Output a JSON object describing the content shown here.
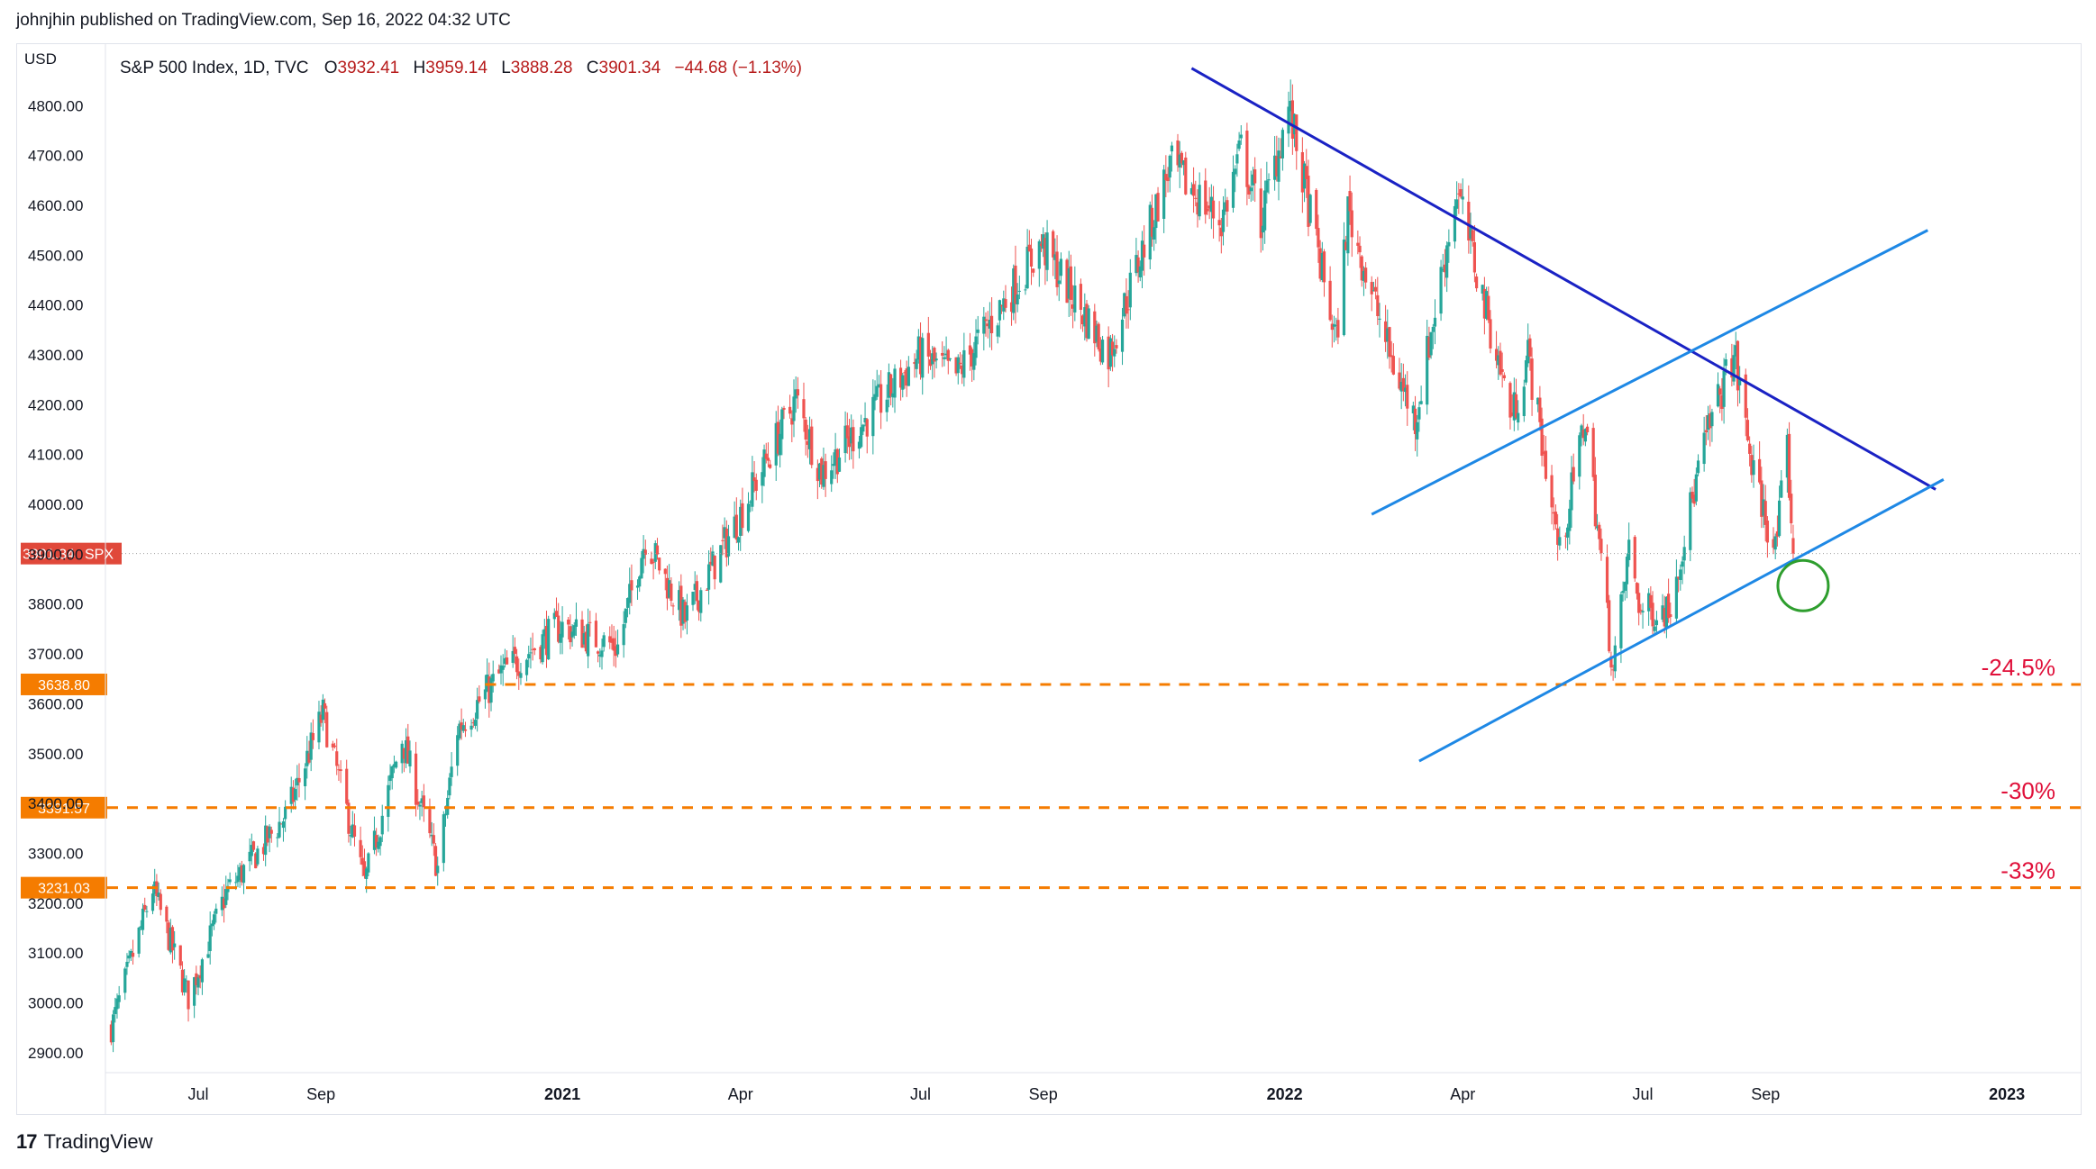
{
  "header": {
    "publish_text": "johnjhin published on TradingView.com, Sep 16, 2022 04:32 UTC"
  },
  "footer": {
    "brand": "TradingView",
    "logo_glyph": "17"
  },
  "legend": {
    "currency": "USD",
    "symbol": "S&P 500 Index, 1D, TVC",
    "open_label": "O",
    "open": "3932.41",
    "high_label": "H",
    "high": "3959.14",
    "low_label": "L",
    "low": "3888.28",
    "close_label": "C",
    "close": "3901.34",
    "change": "−44.68 (−1.13%)"
  },
  "price_tag": {
    "value": "3901.34",
    "symbol": "SPX",
    "color": "#e0483a"
  },
  "colors": {
    "up": "#26a69a",
    "down": "#ef5350",
    "accent_orange": "#f57c00",
    "dark_blue": "#1a22c4",
    "light_blue": "#1e88e5",
    "green_circle": "#2e9e2e",
    "annot_red": "#e0103a"
  },
  "chart_data": {
    "type": "candlestick",
    "title": "S&P 500 Index, 1D, TVC",
    "ylabel": "USD",
    "ylim": [
      2860,
      4880
    ],
    "xlim": [
      "2020-05-16",
      "2023-01-31"
    ],
    "y_ticks": [
      "2900.00",
      "3000.00",
      "3100.00",
      "3200.00",
      "3300.00",
      "3400.00",
      "3500.00",
      "3600.00",
      "3700.00",
      "3800.00",
      "3900.00",
      "4000.00",
      "4100.00",
      "4200.00",
      "4300.00",
      "4400.00",
      "4500.00",
      "4600.00",
      "4700.00",
      "4800.00"
    ],
    "x_ticks": [
      {
        "label": "Jul",
        "date": "2020-07-01"
      },
      {
        "label": "Sep",
        "date": "2020-09-01"
      },
      {
        "label": "2021",
        "date": "2021-01-01"
      },
      {
        "label": "Apr",
        "date": "2021-04-01"
      },
      {
        "label": "Jul",
        "date": "2021-07-01"
      },
      {
        "label": "Sep",
        "date": "2021-09-01"
      },
      {
        "label": "2022",
        "date": "2022-01-01"
      },
      {
        "label": "Apr",
        "date": "2022-04-01"
      },
      {
        "label": "Jul",
        "date": "2022-07-01"
      },
      {
        "label": "Sep",
        "date": "2022-09-01"
      },
      {
        "label": "2023",
        "date": "2023-01-01"
      }
    ],
    "close_path": [
      [
        "2020-05-18",
        2950
      ],
      [
        "2020-06-08",
        3230
      ],
      [
        "2020-06-26",
        3010
      ],
      [
        "2020-07-15",
        3220
      ],
      [
        "2020-08-15",
        3380
      ],
      [
        "2020-09-02",
        3580
      ],
      [
        "2020-09-23",
        3240
      ],
      [
        "2020-10-12",
        3530
      ],
      [
        "2020-10-30",
        3270
      ],
      [
        "2020-11-09",
        3550
      ],
      [
        "2020-12-01",
        3660
      ],
      [
        "2020-12-31",
        3756
      ],
      [
        "2021-01-29",
        3714
      ],
      [
        "2021-02-12",
        3934
      ],
      [
        "2021-03-04",
        3768
      ],
      [
        "2021-03-31",
        3973
      ],
      [
        "2021-04-29",
        4211
      ],
      [
        "2021-05-12",
        4063
      ],
      [
        "2021-06-30",
        4297
      ],
      [
        "2021-07-19",
        4258
      ],
      [
        "2021-08-31",
        4522
      ],
      [
        "2021-09-10",
        4458
      ],
      [
        "2021-10-04",
        4300
      ],
      [
        "2021-11-04",
        4680
      ],
      [
        "2021-11-30",
        4567
      ],
      [
        "2021-12-10",
        4712
      ],
      [
        "2021-12-20",
        4568
      ],
      [
        "2022-01-03",
        4796
      ],
      [
        "2022-01-27",
        4326
      ],
      [
        "2022-02-02",
        4589
      ],
      [
        "2022-02-24",
        4288
      ],
      [
        "2022-03-08",
        4170
      ],
      [
        "2022-03-29",
        4631
      ],
      [
        "2022-04-26",
        4175
      ],
      [
        "2022-05-04",
        4300
      ],
      [
        "2022-05-20",
        3900
      ],
      [
        "2022-06-02",
        4176
      ],
      [
        "2022-06-16",
        3666
      ],
      [
        "2022-06-24",
        3911
      ],
      [
        "2022-06-30",
        3785
      ],
      [
        "2022-07-14",
        3790
      ],
      [
        "2022-08-01",
        4119
      ],
      [
        "2022-08-16",
        4305
      ],
      [
        "2022-08-26",
        4057
      ],
      [
        "2022-09-06",
        3908
      ],
      [
        "2022-09-12",
        4110
      ],
      [
        "2022-09-15",
        3901
      ]
    ],
    "horizontal_levels": [
      {
        "value": 3638.8,
        "label": "3638.80",
        "annotation": "-24.5%"
      },
      {
        "value": 3391.57,
        "label": "3391.57",
        "annotation": "-30%"
      },
      {
        "value": 3231.03,
        "label": "3231.03",
        "annotation": "-33%"
      }
    ],
    "trendlines": [
      {
        "name": "resistance",
        "color": "dark_blue",
        "points": [
          [
            "2021-11-15",
            4875
          ],
          [
            "2022-11-26",
            4030
          ]
        ]
      },
      {
        "name": "channel-top",
        "color": "light_blue",
        "points": [
          [
            "2022-02-14",
            3980
          ],
          [
            "2022-11-22",
            4550
          ]
        ]
      },
      {
        "name": "channel-bottom",
        "color": "light_blue",
        "points": [
          [
            "2022-03-10",
            3485
          ],
          [
            "2022-11-30",
            4050
          ]
        ]
      }
    ],
    "marker_circle": {
      "date": "2022-09-20",
      "value": 3837
    }
  }
}
